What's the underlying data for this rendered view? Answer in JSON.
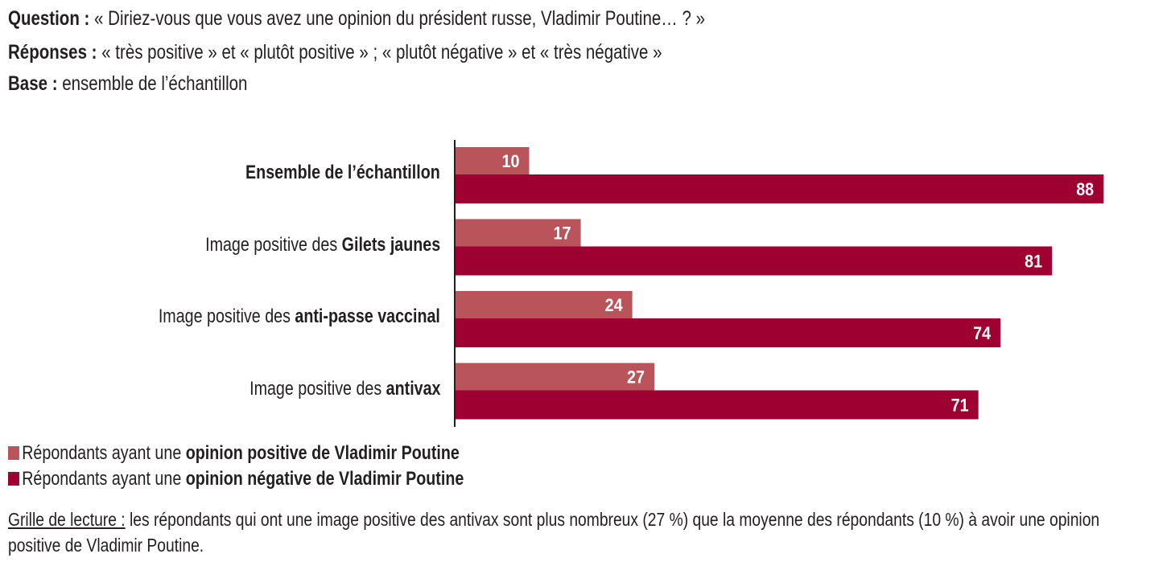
{
  "header": {
    "question_label": "Question :",
    "question_text": " « Diriez-vous que vous avez une opinion du président russe, Vladimir Poutine… ? »",
    "answers_label": "Réponses :",
    "answers_text": " « très positive » et « plutôt positive » ; « plutôt négative » et « très négative »",
    "base_label": "Base :",
    "base_text": " ensemble de l’échantillon"
  },
  "colors": {
    "positive": "#b8545a",
    "negative": "#9e0031",
    "axis": "#231f20",
    "label_text": "#ffffff"
  },
  "chart_data": {
    "type": "bar",
    "orientation": "horizontal",
    "title": "",
    "xlabel": "",
    "ylabel": "",
    "xlim": [
      0,
      100
    ],
    "grid": false,
    "legend_position": "bottom-left",
    "categories": [
      {
        "prefix": "",
        "bold": "Ensemble de l’échantillon"
      },
      {
        "prefix": "Image positive des ",
        "bold": "Gilets jaunes"
      },
      {
        "prefix": "Image positive des ",
        "bold": "anti-passe vaccinal"
      },
      {
        "prefix": "Image positive des ",
        "bold": "antivax"
      }
    ],
    "series": [
      {
        "name": "Répondants ayant une opinion positive de Vladimir Poutine",
        "values": [
          10,
          17,
          24,
          27
        ]
      },
      {
        "name": "Répondants ayant une opinion négative de Vladimir Poutine",
        "values": [
          88,
          81,
          74,
          71
        ]
      }
    ]
  },
  "legend": [
    {
      "prefix": "Répondants ayant une ",
      "bold": "opinion positive de Vladimir Poutine"
    },
    {
      "prefix": "Répondants ayant une ",
      "bold": "opinion négative de Vladimir Poutine"
    }
  ],
  "note": {
    "label": "Grille de lecture :",
    "text": " les répondants qui ont une image positive des antivax sont plus nombreux (27 %) que la moyenne des répondants (10 %) à avoir une opinion positive de Vladimir Poutine."
  }
}
